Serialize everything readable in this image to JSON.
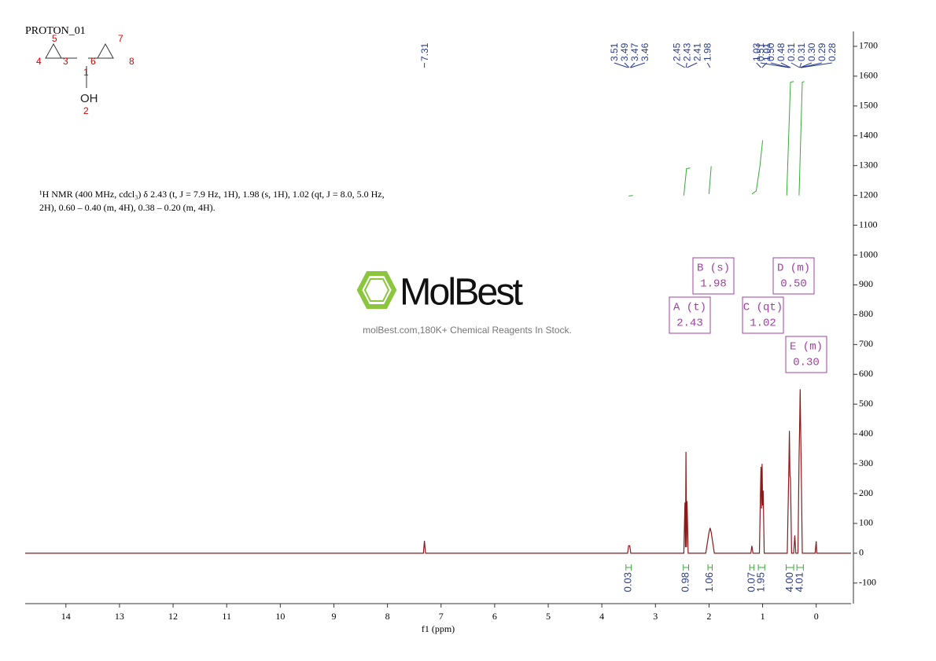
{
  "chart_data": {
    "type": "nmr",
    "title": "PROTON_01",
    "xlabel": "f1 (ppm)",
    "xlim": [
      14.76,
      -0.65
    ],
    "xticks": [
      14,
      13,
      12,
      11,
      10,
      9,
      8,
      7,
      6,
      5,
      4,
      3,
      2,
      1,
      0
    ],
    "ylim": [
      -169,
      1750
    ],
    "yticks": [
      -100,
      0,
      100,
      200,
      300,
      400,
      500,
      600,
      700,
      800,
      900,
      1000,
      1100,
      1200,
      1300,
      1400,
      1500,
      1600,
      1700
    ],
    "series": [
      {
        "name": "spectrum",
        "color": "#8b1a1a",
        "x": [
          14.76,
          7.33,
          7.31,
          7.29,
          3.52,
          3.5,
          3.48,
          3.46,
          2.47,
          2.45,
          2.44,
          2.43,
          2.42,
          2.41,
          2.39,
          2.06,
          2.0,
          1.98,
          1.96,
          1.9,
          1.22,
          1.2,
          1.18,
          1.06,
          1.04,
          1.03,
          1.02,
          1.01,
          1.0,
          0.99,
          0.97,
          0.54,
          0.52,
          0.51,
          0.5,
          0.49,
          0.48,
          0.46,
          0.42,
          0.4,
          0.38,
          0.34,
          0.32,
          0.31,
          0.3,
          0.29,
          0.28,
          0.26,
          0.02,
          0.0,
          -0.01,
          -0.65
        ],
        "values": [
          0,
          0,
          42,
          0,
          0,
          25,
          25,
          0,
          0,
          170,
          20,
          340,
          20,
          175,
          0,
          0,
          70,
          85,
          70,
          0,
          0,
          25,
          0,
          0,
          200,
          290,
          150,
          300,
          160,
          210,
          0,
          0,
          200,
          300,
          410,
          260,
          250,
          0,
          0,
          60,
          0,
          0,
          320,
          420,
          550,
          400,
          300,
          0,
          0,
          40,
          0,
          0
        ]
      },
      {
        "name": "integral",
        "color": "#3aa83a",
        "x": [
          3.5,
          3.42,
          null,
          2.47,
          2.42,
          2.35,
          null,
          2.0,
          1.96,
          null,
          1.2,
          1.12,
          1.05,
          1.0,
          null,
          0.55,
          0.48,
          0.42,
          null,
          0.32,
          0.26,
          0.22
        ],
        "values": [
          1198,
          1200,
          null,
          1200,
          1290,
          1292,
          null,
          1205,
          1298,
          null,
          1205,
          1215,
          1300,
          1385,
          null,
          1200,
          1580,
          1582,
          null,
          1200,
          1580,
          1582
        ]
      }
    ],
    "peak_labels": [
      {
        "value": 7.31,
        "label": "7.31"
      },
      {
        "value": 3.51,
        "label": "3.51"
      },
      {
        "value": 3.49,
        "label": "3.49"
      },
      {
        "value": 3.47,
        "label": "3.47"
      },
      {
        "value": 3.46,
        "label": "3.46"
      },
      {
        "value": 2.45,
        "label": "2.45"
      },
      {
        "value": 2.43,
        "label": "2.43"
      },
      {
        "value": 2.41,
        "label": "2.41"
      },
      {
        "value": 1.98,
        "label": "1.98"
      },
      {
        "value": 1.03,
        "label": "1.03"
      },
      {
        "value": 1.01,
        "label": "1.01"
      },
      {
        "value": 0.51,
        "label": "0.51"
      },
      {
        "value": 0.5,
        "label": "0.50"
      },
      {
        "value": 0.48,
        "label": "0.48"
      },
      {
        "value": 0.31,
        "label": "0.31"
      },
      {
        "value": 0.31,
        "label": "0.31"
      },
      {
        "value": 0.3,
        "label": "0.30"
      },
      {
        "value": 0.29,
        "label": "0.29"
      },
      {
        "value": 0.28,
        "label": "0.28"
      }
    ],
    "integrals": {
      "ranges": [
        [
          3.55,
          3.45
        ],
        [
          2.48,
          2.38
        ],
        [
          2.02,
          1.94
        ],
        [
          1.24,
          1.16
        ],
        [
          1.08,
          0.96
        ],
        [
          0.56,
          0.42
        ],
        [
          0.36,
          0.24
        ]
      ],
      "values": [
        0.03,
        0.98,
        1.06,
        0.07,
        1.95,
        4.0,
        4.01
      ],
      "value_labels": [
        "0.03",
        "0.98",
        "1.06",
        "0.07",
        "1.95",
        "4.00",
        "4.01"
      ]
    },
    "multiplets": {
      "labels": [
        "A (t)",
        "B (s)",
        "C (qt)",
        "D (m)",
        "E (m)"
      ],
      "shifts": [
        2.43,
        1.98,
        1.02,
        {
          "value": 0.5,
          "label": "0.50"
        },
        {
          "value": 0.3,
          "label": "0.30"
        }
      ]
    },
    "description": [
      "¹H NMR (400 MHz, cdcl₃) δ 2.43 (t, J = 7.9 Hz, 1H), 1.98 (s, 1H), 1.02 (qt, J = 8.0, 5.0 Hz,",
      "2H), 0.60 – 0.40 (m, 4H), 0.38 – 0.20 (m, 4H)."
    ],
    "molecule": {
      "atoms": [
        "5",
        "4",
        "3",
        "1",
        "6",
        "7",
        "8",
        "OH",
        "2"
      ]
    }
  },
  "watermark": {
    "brand": "MolBest",
    "slogan": "molBest.com,180K+ Chemical Reagents In Stock."
  }
}
